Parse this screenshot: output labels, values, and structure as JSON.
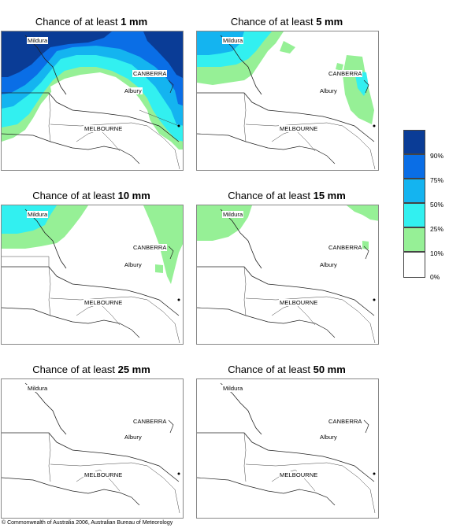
{
  "panels": [
    {
      "prefix": "Chance of at least ",
      "amount": "1 mm"
    },
    {
      "prefix": "Chance of at least ",
      "amount": "5 mm"
    },
    {
      "prefix": "Chance of at least ",
      "amount": "10 mm"
    },
    {
      "prefix": "Chance of at least ",
      "amount": "15 mm"
    },
    {
      "prefix": "Chance of at least ",
      "amount": "25 mm"
    },
    {
      "prefix": "Chance of at least ",
      "amount": "50 mm"
    }
  ],
  "places": {
    "mildura": "Mildura",
    "canberra": "CANBERRA",
    "albury": "Albury",
    "melbourne": "MELBOURNE"
  },
  "legend": {
    "labels": [
      "90%",
      "75%",
      "50%",
      "25%",
      "10%",
      "0%"
    ],
    "colors": [
      "#0a3c96",
      "#0a6ee6",
      "#14b4f0",
      "#32f0f0",
      "#96f096",
      "#ffffff"
    ]
  },
  "copyright": "© Commonwealth of Australia 2006, Australian Bureau of Meteorology"
}
